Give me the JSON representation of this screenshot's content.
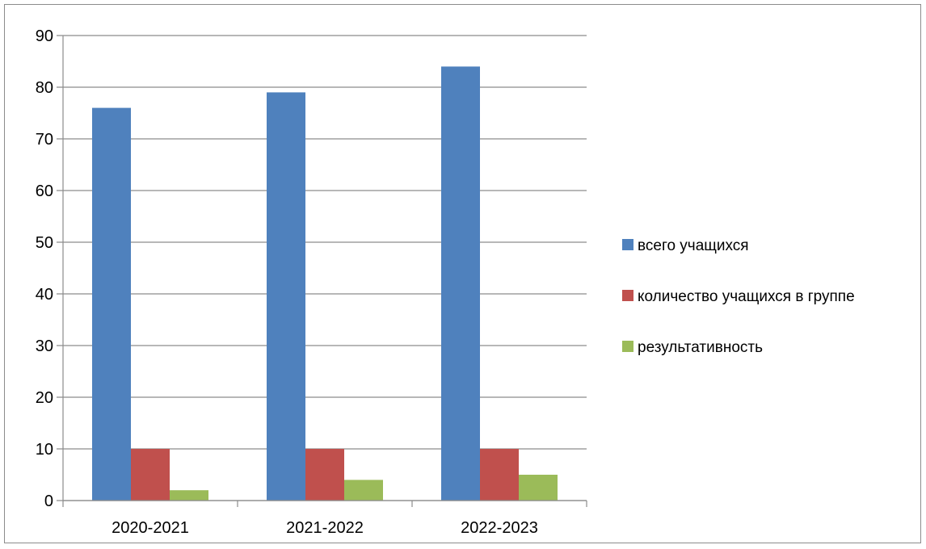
{
  "chart_data": {
    "type": "bar",
    "title": "",
    "xlabel": "",
    "ylabel": "",
    "categories": [
      "2020-2021",
      "2021-2022",
      "2022-2023"
    ],
    "series": [
      {
        "name": "всего учащихся",
        "values": [
          76,
          79,
          84
        ],
        "color": "#4f81bd"
      },
      {
        "name": "количество учащихся в группе",
        "values": [
          10,
          10,
          10
        ],
        "color": "#c0504d"
      },
      {
        "name": "результативность",
        "values": [
          2,
          4,
          5
        ],
        "color": "#9bbb59"
      }
    ],
    "ylim": [
      0,
      90
    ],
    "yticks": [
      0,
      10,
      20,
      30,
      40,
      50,
      60,
      70,
      80,
      90
    ],
    "grid": true,
    "legend": "right"
  }
}
